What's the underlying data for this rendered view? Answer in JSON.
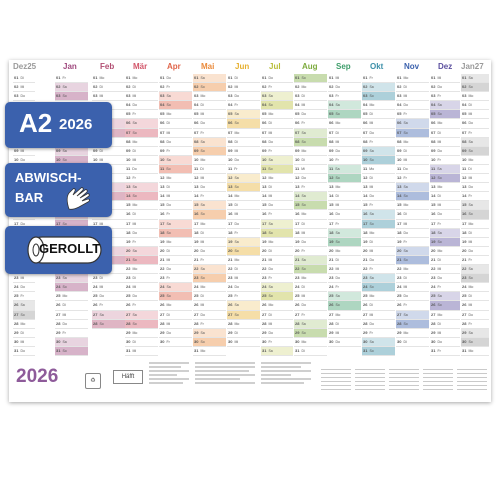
{
  "months": [
    {
      "label": "Dez",
      "year_suffix": "25",
      "color": "#9a9a9a",
      "days": 31,
      "start_dow": 1
    },
    {
      "label": "Jan",
      "color": "#a04a7f",
      "days": 31,
      "start_dow": 4
    },
    {
      "label": "Feb",
      "color": "#b24f73",
      "days": 28,
      "start_dow": 0
    },
    {
      "label": "Mär",
      "color": "#d2566a",
      "days": 31,
      "start_dow": 0
    },
    {
      "label": "Apr",
      "color": "#e0654a",
      "days": 30,
      "start_dow": 3
    },
    {
      "label": "Mai",
      "color": "#ea8a3b",
      "days": 31,
      "start_dow": 5
    },
    {
      "label": "Jun",
      "color": "#e6b02f",
      "days": 30,
      "start_dow": 1
    },
    {
      "label": "Jul",
      "color": "#b9bf3a",
      "days": 31,
      "start_dow": 3
    },
    {
      "label": "Aug",
      "color": "#7dab3e",
      "days": 31,
      "start_dow": 6
    },
    {
      "label": "Sep",
      "color": "#3f9e6b",
      "days": 30,
      "start_dow": 2
    },
    {
      "label": "Okt",
      "color": "#3b8fa8",
      "days": 31,
      "start_dow": 4
    },
    {
      "label": "Nov",
      "color": "#3b61ad",
      "days": 30,
      "start_dow": 0
    },
    {
      "label": "Dez",
      "color": "#5b4f9e",
      "days": 31,
      "start_dow": 2
    },
    {
      "label": "Jan",
      "year_suffix": "27",
      "color": "#9a9a9a",
      "days": 31,
      "start_dow": 5
    }
  ],
  "day_abbr": [
    "Mo",
    "Di",
    "Mi",
    "Do",
    "Fr",
    "Sa",
    "So"
  ],
  "tags": {
    "a2": {
      "label": "A2",
      "year": "2026"
    },
    "wipe": {
      "line1": "ABWISCH-",
      "line2": "BAR"
    },
    "rolled": {
      "label": "GEROLLT"
    }
  },
  "footer": {
    "year": "2026",
    "brand": "Häfft"
  }
}
